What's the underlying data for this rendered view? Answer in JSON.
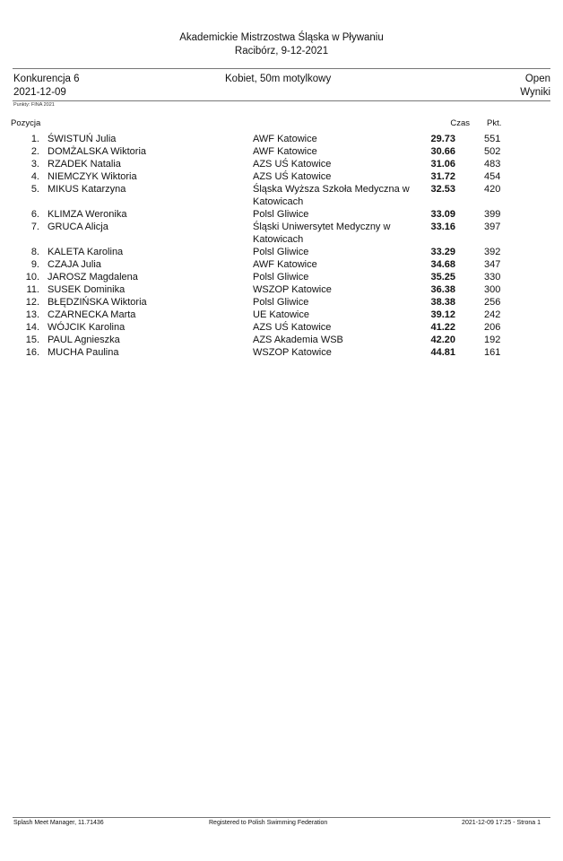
{
  "header": {
    "meet_title": "Akademickie Mistrzostwa Śląska w Pływaniu",
    "meet_place_date": "Racibórz, 9-12-2021",
    "event": "Konkurencja 6",
    "event_date": "2021-12-09",
    "event_name": "Kobiet, 50m motylkowy",
    "category": "Open",
    "results_label": "Wyniki",
    "points_note": "Punkty: FINA 2021"
  },
  "columns": {
    "position": "Pozycja",
    "time": "Czas",
    "points": "Pkt."
  },
  "results": [
    {
      "pos": "1.",
      "name": "ŚWISTUŃ Julia",
      "club": "AWF Katowice",
      "time": "29.73",
      "pts": "551"
    },
    {
      "pos": "2.",
      "name": "DOMŻALSKA Wiktoria",
      "club": "AWF Katowice",
      "time": "30.66",
      "pts": "502"
    },
    {
      "pos": "3.",
      "name": "RZADEK Natalia",
      "club": "AZS UŚ Katowice",
      "time": "31.06",
      "pts": "483"
    },
    {
      "pos": "4.",
      "name": "NIEMCZYK Wiktoria",
      "club": "AZS UŚ Katowice",
      "time": "31.72",
      "pts": "454"
    },
    {
      "pos": "5.",
      "name": "MIKUS Katarzyna",
      "club": "Śląska Wyższa Szkoła Medyczna w Katowicach",
      "time": "32.53",
      "pts": "420"
    },
    {
      "pos": "6.",
      "name": "KLIMZA Weronika",
      "club": "Polsl Gliwice",
      "time": "33.09",
      "pts": "399"
    },
    {
      "pos": "7.",
      "name": "GRUCA Alicja",
      "club": "Śląski Uniwersytet Medyczny w Katowicach",
      "time": "33.16",
      "pts": "397"
    },
    {
      "pos": "8.",
      "name": "KALETA Karolina",
      "club": "Polsl Gliwice",
      "time": "33.29",
      "pts": "392"
    },
    {
      "pos": "9.",
      "name": "CZAJA Julia",
      "club": "AWF Katowice",
      "time": "34.68",
      "pts": "347"
    },
    {
      "pos": "10.",
      "name": "JAROSZ Magdalena",
      "club": "Polsl Gliwice",
      "time": "35.25",
      "pts": "330"
    },
    {
      "pos": "11.",
      "name": "SUSEK Dominika",
      "club": "WSZOP Katowice",
      "time": "36.38",
      "pts": "300"
    },
    {
      "pos": "12.",
      "name": "BŁĘDZIŃSKA Wiktoria",
      "club": "Polsl Gliwice",
      "time": "38.38",
      "pts": "256"
    },
    {
      "pos": "13.",
      "name": "CZARNECKA Marta",
      "club": "UE Katowice",
      "time": "39.12",
      "pts": "242"
    },
    {
      "pos": "14.",
      "name": "WÓJCIK Karolina",
      "club": "AZS UŚ Katowice",
      "time": "41.22",
      "pts": "206"
    },
    {
      "pos": "15.",
      "name": "PAUL Agnieszka",
      "club": "AZS Akademia WSB",
      "time": "42.20",
      "pts": "192"
    },
    {
      "pos": "16.",
      "name": "MUCHA Paulina",
      "club": "WSZOP Katowice",
      "time": "44.81",
      "pts": "161"
    }
  ],
  "footer": {
    "software": "Splash Meet Manager, 11.71436",
    "registration": "Registered to Polish Swimming Federation",
    "timestamp_page": "2021-12-09 17:25 - Strona 1"
  }
}
